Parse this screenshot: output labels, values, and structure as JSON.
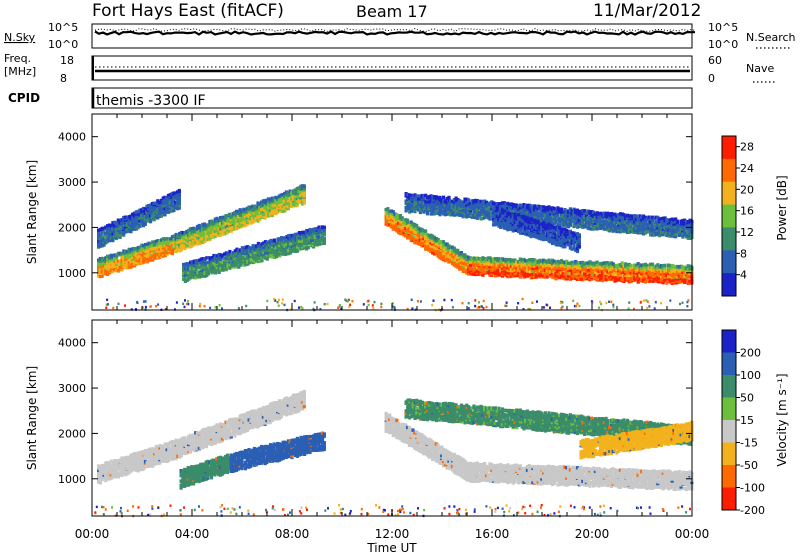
{
  "header": {
    "station": "Fort Hays East (fitACF)",
    "beam": "Beam 17",
    "date": "11/Mar/2012"
  },
  "top_panels": {
    "noise": {
      "left_label": "N.Sky",
      "right_label": "N.Search",
      "left_ticks": [
        "10^5",
        "10^0"
      ],
      "right_ticks": [
        "10^5",
        "10^0"
      ]
    },
    "freq": {
      "left_label_1": "Freq.",
      "left_label_2": "[MHz]",
      "right_label": "Nave",
      "left_ticks": [
        "18",
        "8"
      ],
      "right_ticks": [
        "60",
        "0"
      ]
    },
    "cpid": {
      "label": "CPID",
      "text": "themis -3300 IF"
    }
  },
  "chart_data": [
    {
      "type": "heatmap",
      "name": "power",
      "ylabel": "Slant Range [km]",
      "xlabel": "Time UT",
      "ylim": [
        180,
        4500
      ],
      "yticks": [
        "1000",
        "2000",
        "3000",
        "4000"
      ],
      "xlim": [
        0,
        24
      ],
      "xticks": [
        "00:00",
        "04:00",
        "08:00",
        "12:00",
        "16:00",
        "20:00",
        "00:00"
      ],
      "colorbar": {
        "label": "Power [dB]",
        "ticks": [
          "4",
          "8",
          "12",
          "16",
          "20",
          "24",
          "28"
        ],
        "range": [
          0,
          30
        ],
        "colors": [
          "#1b22c8",
          "#2b5fb4",
          "#3a8c6a",
          "#6cbf3c",
          "#f3b21d",
          "#ff6a00",
          "#ff1d00"
        ]
      },
      "bands": [
        {
          "t0": 0.2,
          "t1": 3.3,
          "r0": 1150,
          "r1": 1700,
          "level": 22
        },
        {
          "t0": 3.3,
          "t1": 8.5,
          "r0": 1700,
          "r1": 2800,
          "level": 18
        },
        {
          "t0": 0.2,
          "t1": 3.5,
          "r0": 1800,
          "r1": 2700,
          "level": 8
        },
        {
          "t0": 3.6,
          "t1": 9.3,
          "r0": 1050,
          "r1": 1900,
          "level": 12
        },
        {
          "t0": 11.7,
          "t1": 15.0,
          "r0": 2300,
          "r1": 1200,
          "level": 24
        },
        {
          "t0": 15.0,
          "t1": 24.0,
          "r0": 1200,
          "r1": 1000,
          "level": 26
        },
        {
          "t0": 12.5,
          "t1": 24.0,
          "r0": 2600,
          "r1": 2000,
          "level": 8
        },
        {
          "t0": 16.0,
          "t1": 19.5,
          "r0": 2300,
          "r1": 1700,
          "level": 6
        }
      ]
    },
    {
      "type": "heatmap",
      "name": "velocity",
      "ylabel": "Slant Range [km]",
      "xlabel": "Time UT",
      "ylim": [
        180,
        4500
      ],
      "yticks": [
        "1000",
        "2000",
        "3000",
        "4000"
      ],
      "xlim": [
        0,
        24
      ],
      "xticks": [
        "00:00",
        "04:00",
        "08:00",
        "12:00",
        "16:00",
        "20:00",
        "00:00"
      ],
      "colorbar": {
        "label": "Velocity [m s⁻¹]",
        "ticks": [
          "200",
          "100",
          "50",
          "15",
          "-15",
          "-50",
          "-100",
          "-200"
        ],
        "colors": [
          "#1b22c8",
          "#2b5fb4",
          "#3a8c6a",
          "#6cbf3c",
          "#c8c8c8",
          "#f3b21d",
          "#ff6a00",
          "#ff1d00"
        ]
      },
      "bands": [
        {
          "t0": 0.2,
          "t1": 3.3,
          "r0": 1150,
          "r1": 1700,
          "level": -5
        },
        {
          "t0": 3.3,
          "t1": 8.5,
          "r0": 1700,
          "r1": 2800,
          "level": -5
        },
        {
          "t0": 3.5,
          "t1": 5.5,
          "r0": 1050,
          "r1": 1400,
          "level": 30
        },
        {
          "t0": 5.5,
          "t1": 9.3,
          "r0": 1400,
          "r1": 1900,
          "level": 70
        },
        {
          "t0": 11.7,
          "t1": 15.0,
          "r0": 2300,
          "r1": 1200,
          "level": -5
        },
        {
          "t0": 15.0,
          "t1": 24.0,
          "r0": 1200,
          "r1": 1000,
          "level": -5
        },
        {
          "t0": 12.5,
          "t1": 24.0,
          "r0": 2600,
          "r1": 2000,
          "level": 20
        },
        {
          "t0": 19.5,
          "t1": 24.0,
          "r0": 1700,
          "r1": 2100,
          "level": -40
        }
      ]
    }
  ]
}
